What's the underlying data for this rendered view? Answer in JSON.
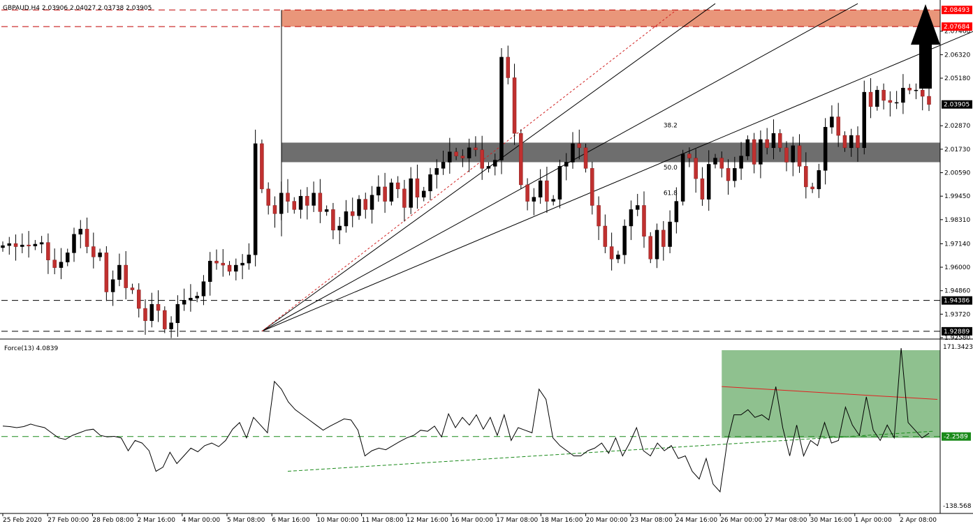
{
  "header": {
    "symbol_line": "GBPAUD,H4  2.03906 2.04027 2.03738 2.03905"
  },
  "chart_data": [
    {
      "type": "candlestick",
      "title": "GBPAUD,H4",
      "ohlc_header": {
        "open": 2.03906,
        "high": 2.04027,
        "low": 2.03738,
        "close": 2.03905
      },
      "ylim": [
        1.9258,
        2.0884
      ],
      "y_ticks": [
        "2.07460",
        "2.06320",
        "2.05180",
        "2.02870",
        "2.01730",
        "2.00590",
        "1.99450",
        "1.98310",
        "1.97140",
        "1.96000",
        "1.94860",
        "1.93720",
        "1.92580"
      ],
      "price_tags": [
        {
          "label": "2.08493",
          "value": 2.08493,
          "color": "#ff0000"
        },
        {
          "label": "2.07684",
          "value": 2.07684,
          "color": "#ff0000"
        },
        {
          "label": "2.03905",
          "value": 2.03905,
          "color": "#000000"
        },
        {
          "label": "1.94386",
          "value": 1.94386,
          "color": "#000000"
        },
        {
          "label": "1.92889",
          "value": 1.92889,
          "color": "#000000"
        }
      ],
      "resistance_zone": {
        "from": 2.07684,
        "to": 2.08493,
        "color": "#e9967a"
      },
      "support_zone": {
        "from": 2.011,
        "to": 2.0205,
        "color": "#6e6e6e"
      },
      "horizontal_lines": [
        {
          "value": 2.08493,
          "style": "dashed",
          "color": "#c00000"
        },
        {
          "value": 2.07684,
          "style": "dashed",
          "color": "#c00000"
        },
        {
          "value": 1.94386,
          "style": "dashed",
          "color": "#000000"
        },
        {
          "value": 1.92889,
          "style": "dashed",
          "color": "#000000"
        }
      ],
      "fib_labels": [
        "38.2",
        "50.0",
        "61.8"
      ],
      "fan_origin": {
        "candle": 40,
        "price": 1.9289
      },
      "fan_lines": [
        {
          "candle": 110,
          "price": 2.088
        },
        {
          "candle": 132,
          "price": 2.088
        },
        {
          "candle": 160,
          "price": 2.088
        }
      ],
      "arrow": {
        "direction": "up",
        "color": "#000000"
      },
      "x_ticks": [
        "25 Feb 2020",
        "27 Feb 00:00",
        "28 Feb 08:00",
        "2 Mar 16:00",
        "4 Mar 00:00",
        "5 Mar 08:00",
        "6 Mar 16:00",
        "10 Mar 00:00",
        "11 Mar 08:00",
        "12 Mar 16:00",
        "16 Mar 00:00",
        "17 Mar 08:00",
        "18 Mar 16:00",
        "20 Mar 00:00",
        "23 Mar 08:00",
        "24 Mar 16:00",
        "26 Mar 00:00",
        "27 Mar 08:00",
        "30 Mar 16:00",
        "1 Apr 00:00",
        "2 Apr 08:00"
      ],
      "closes": [
        1.9705,
        1.9715,
        1.97,
        1.9708,
        1.9703,
        1.9712,
        1.972,
        1.9635,
        1.9598,
        1.9625,
        1.967,
        1.976,
        1.9785,
        1.97,
        1.965,
        1.967,
        1.948,
        1.954,
        1.961,
        1.95,
        1.949,
        1.94,
        1.934,
        1.942,
        1.939,
        1.93,
        1.933,
        1.942,
        1.944,
        1.945,
        1.946,
        1.953,
        1.963,
        1.962,
        1.961,
        1.958,
        1.961,
        1.962,
        1.966,
        2.02,
        1.998,
        1.99,
        1.986,
        1.996,
        1.992,
        1.988,
        1.9945,
        1.99,
        1.996,
        1.987,
        1.988,
        1.978,
        1.98,
        1.987,
        1.985,
        1.993,
        1.988,
        1.995,
        1.999,
        1.992,
        2.001,
        1.998,
        1.989,
        2.003,
        1.994,
        1.997,
        2.005,
        2.008,
        2.011,
        2.016,
        2.014,
        2.013,
        2.018,
        2.017,
        2.008,
        2.009,
        2.012,
        2.062,
        2.052,
        2.025,
        2.0,
        1.992,
        1.994,
        2.002,
        1.992,
        1.993,
        2.009,
        2.011,
        2.02,
        2.018,
        2.008,
        1.99,
        1.98,
        1.97,
        1.964,
        1.966,
        1.98,
        1.988,
        1.99,
        1.975,
        1.964,
        1.978,
        1.97,
        1.982,
        1.992,
        2.015,
        2.013,
        2.003,
        1.993,
        2.01,
        2.013,
        2.008,
        2.002,
        2.008,
        2.014,
        2.022,
        2.01,
        2.022,
        2.018,
        2.025,
        2.018,
        2.011,
        2.019,
        2.009,
        1.999,
        1.998,
        2.007,
        2.028,
        2.033,
        2.024,
        2.018,
        2.024,
        2.018,
        2.045,
        2.038,
        2.046,
        2.041,
        2.04,
        2.04,
        2.047,
        2.046,
        2.046,
        2.043,
        2.03905
      ],
      "force_index": {
        "name": "Force(13) 4.0839",
        "value": 4.0839,
        "ylim": [
          -138.568,
          171.3423
        ],
        "y_tick_labels": [
          "171.3423",
          "-138.568"
        ],
        "current_tag": "-2.2589",
        "values": [
          18,
          17,
          15,
          17,
          22,
          18,
          15,
          5,
          -5,
          -8,
          0,
          5,
          10,
          12,
          0,
          -3,
          -2,
          -5,
          -30,
          -10,
          -15,
          -30,
          -70,
          -62,
          -33,
          -55,
          -40,
          -25,
          -32,
          -20,
          -15,
          -22,
          -10,
          12,
          25,
          -5,
          35,
          20,
          5,
          105,
          90,
          65,
          50,
          40,
          30,
          20,
          10,
          18,
          25,
          32,
          30,
          10,
          -40,
          -30,
          -25,
          -28,
          -20,
          -12,
          -5,
          0,
          10,
          8,
          18,
          -3,
          42,
          15,
          35,
          20,
          40,
          12,
          35,
          0,
          40,
          -10,
          15,
          10,
          5,
          90,
          70,
          -5,
          -20,
          -30,
          -40,
          -40,
          -30,
          -25,
          -15,
          -35,
          -5,
          -40,
          -15,
          15,
          -30,
          -40,
          -15,
          -30,
          -20,
          -45,
          -40,
          -70,
          -85,
          -45,
          -95,
          -110,
          -15,
          40,
          40,
          50,
          35,
          40,
          30,
          95,
          15,
          -40,
          20,
          -40,
          -10,
          -20,
          25,
          -15,
          -10,
          55,
          20,
          0,
          75,
          10,
          -10,
          20,
          -5,
          170,
          25,
          10,
          -5,
          4.08
        ],
        "zone": {
          "color": "#8fc18f"
        },
        "support_value": -2.2589
      }
    }
  ]
}
